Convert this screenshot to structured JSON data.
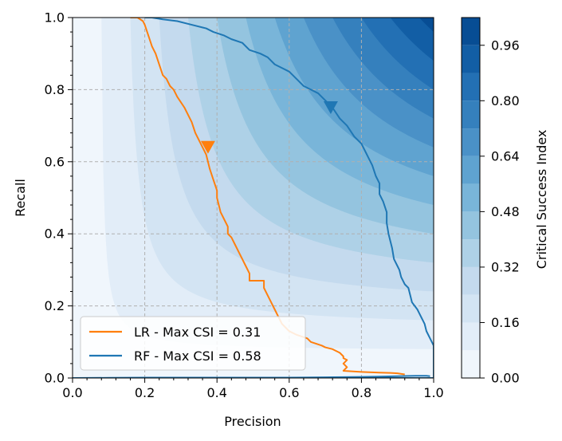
{
  "chart_data": {
    "type": "line",
    "subtype": "performance-diagram",
    "xlabel": "Precision",
    "ylabel": "Recall",
    "xlim": [
      0,
      1
    ],
    "ylim": [
      0,
      1
    ],
    "xticks": [
      "0.0",
      "0.2",
      "0.4",
      "0.6",
      "0.8",
      "1.0"
    ],
    "yticks": [
      "0.0",
      "0.2",
      "0.4",
      "0.6",
      "0.8",
      "1.0"
    ],
    "grid": true,
    "legend_position": "lower-left",
    "colorbar": {
      "label": "Critical Success Index",
      "range": [
        0,
        1.04
      ],
      "levels": [
        0,
        0.08,
        0.16,
        0.24,
        0.32,
        0.4,
        0.48,
        0.56,
        0.64,
        0.72,
        0.8,
        0.88,
        0.96,
        1.04
      ],
      "tick_labels": [
        "0.00",
        "0.16",
        "0.32",
        "0.48",
        "0.64",
        "0.80",
        "0.96"
      ],
      "colors": [
        "#f0f6fc",
        "#e2edf8",
        "#d3e4f3",
        "#c4daee",
        "#aed1e7",
        "#94c4df",
        "#79b5d9",
        "#5fa3d0",
        "#4a91c7",
        "#3580bd",
        "#2370b4",
        "#125ea5",
        "#074d94"
      ]
    },
    "series": [
      {
        "name": "LR - Max CSI = 0.31",
        "color": "#ff7f0e",
        "points": [
          [
            0.92,
            0.01
          ],
          [
            0.9,
            0.013
          ],
          [
            0.88,
            0.014
          ],
          [
            0.85,
            0.015
          ],
          [
            0.8,
            0.017
          ],
          [
            0.75,
            0.02
          ],
          [
            0.76,
            0.03
          ],
          [
            0.75,
            0.04
          ],
          [
            0.76,
            0.05
          ],
          [
            0.75,
            0.055
          ],
          [
            0.75,
            0.06
          ],
          [
            0.74,
            0.07
          ],
          [
            0.73,
            0.075
          ],
          [
            0.72,
            0.08
          ],
          [
            0.7,
            0.085
          ],
          [
            0.69,
            0.09
          ],
          [
            0.66,
            0.1
          ],
          [
            0.65,
            0.11
          ],
          [
            0.62,
            0.12
          ],
          [
            0.6,
            0.13
          ],
          [
            0.58,
            0.15
          ],
          [
            0.57,
            0.17
          ],
          [
            0.56,
            0.19
          ],
          [
            0.55,
            0.21
          ],
          [
            0.54,
            0.23
          ],
          [
            0.53,
            0.25
          ],
          [
            0.53,
            0.27
          ],
          [
            0.49,
            0.27
          ],
          [
            0.49,
            0.29
          ],
          [
            0.48,
            0.31
          ],
          [
            0.47,
            0.33
          ],
          [
            0.46,
            0.35
          ],
          [
            0.45,
            0.37
          ],
          [
            0.44,
            0.39
          ],
          [
            0.43,
            0.4
          ],
          [
            0.43,
            0.42
          ],
          [
            0.42,
            0.44
          ],
          [
            0.41,
            0.46
          ],
          [
            0.405,
            0.48
          ],
          [
            0.4,
            0.5
          ],
          [
            0.4,
            0.52
          ],
          [
            0.39,
            0.55
          ],
          [
            0.38,
            0.58
          ],
          [
            0.37,
            0.62
          ],
          [
            0.36,
            0.64
          ],
          [
            0.35,
            0.66
          ],
          [
            0.34,
            0.68
          ],
          [
            0.33,
            0.71
          ],
          [
            0.32,
            0.73
          ],
          [
            0.31,
            0.75
          ],
          [
            0.29,
            0.78
          ],
          [
            0.28,
            0.8
          ],
          [
            0.27,
            0.81
          ],
          [
            0.26,
            0.83
          ],
          [
            0.25,
            0.84
          ],
          [
            0.24,
            0.87
          ],
          [
            0.23,
            0.9
          ],
          [
            0.22,
            0.92
          ],
          [
            0.21,
            0.95
          ],
          [
            0.2,
            0.98
          ],
          [
            0.195,
            0.99
          ],
          [
            0.18,
            1.0
          ],
          [
            0.16,
            1.0
          ]
        ],
        "max_csi_marker": [
          0.375,
          0.64
        ]
      },
      {
        "name": "RF - Max CSI = 0.58",
        "color": "#1f77b4",
        "points": [
          [
            0.99,
            0.005
          ],
          [
            0.98,
            0.006
          ],
          [
            0.95,
            0.006
          ],
          [
            0.9,
            0.005
          ],
          [
            0.85,
            0.004
          ],
          [
            0.8,
            0.003
          ],
          [
            0.7,
            0.002
          ],
          [
            0.6,
            0.001
          ],
          [
            0.5,
            0.001
          ],
          [
            0.4,
            0.001
          ],
          [
            0.3,
            0.001
          ],
          [
            0.2,
            0.001
          ],
          [
            0.1,
            0.0005
          ],
          [
            0.0,
            0.0
          ],
          [
            1.0,
            0.0
          ],
          [
            1.0,
            0.05
          ],
          [
            1.0,
            0.09
          ],
          [
            0.99,
            0.11
          ],
          [
            0.98,
            0.13
          ],
          [
            0.975,
            0.15
          ],
          [
            0.97,
            0.16
          ],
          [
            0.96,
            0.18
          ],
          [
            0.955,
            0.19
          ],
          [
            0.94,
            0.21
          ],
          [
            0.935,
            0.23
          ],
          [
            0.93,
            0.25
          ],
          [
            0.92,
            0.26
          ],
          [
            0.91,
            0.28
          ],
          [
            0.905,
            0.3
          ],
          [
            0.9,
            0.31
          ],
          [
            0.89,
            0.33
          ],
          [
            0.885,
            0.36
          ],
          [
            0.88,
            0.38
          ],
          [
            0.875,
            0.4
          ],
          [
            0.87,
            0.43
          ],
          [
            0.87,
            0.46
          ],
          [
            0.86,
            0.49
          ],
          [
            0.85,
            0.51
          ],
          [
            0.85,
            0.54
          ],
          [
            0.84,
            0.56
          ],
          [
            0.83,
            0.59
          ],
          [
            0.82,
            0.61
          ],
          [
            0.81,
            0.63
          ],
          [
            0.8,
            0.65
          ],
          [
            0.78,
            0.67
          ],
          [
            0.76,
            0.7
          ],
          [
            0.74,
            0.72
          ],
          [
            0.72,
            0.75
          ],
          [
            0.7,
            0.77
          ],
          [
            0.68,
            0.79
          ],
          [
            0.66,
            0.8
          ],
          [
            0.64,
            0.81
          ],
          [
            0.62,
            0.83
          ],
          [
            0.6,
            0.85
          ],
          [
            0.58,
            0.86
          ],
          [
            0.56,
            0.87
          ],
          [
            0.54,
            0.89
          ],
          [
            0.52,
            0.9
          ],
          [
            0.49,
            0.91
          ],
          [
            0.47,
            0.93
          ],
          [
            0.44,
            0.94
          ],
          [
            0.42,
            0.95
          ],
          [
            0.39,
            0.96
          ],
          [
            0.37,
            0.97
          ],
          [
            0.33,
            0.98
          ],
          [
            0.29,
            0.99
          ],
          [
            0.25,
            0.995
          ],
          [
            0.22,
            1.0
          ],
          [
            0.2,
            1.0
          ]
        ],
        "max_csi_marker": [
          0.715,
          0.75
        ]
      }
    ]
  }
}
